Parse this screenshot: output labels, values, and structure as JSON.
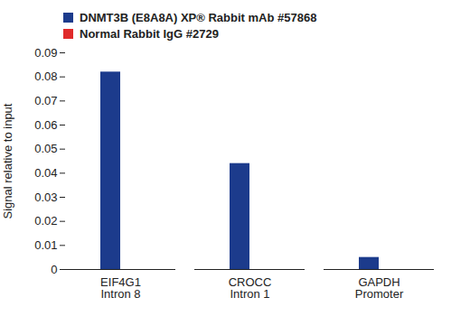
{
  "chart_data": {
    "type": "bar",
    "categories": [
      "EIF4G1\nIntron 8",
      "CROCC\nIntron 1",
      "GAPDH\nPromoter"
    ],
    "series": [
      {
        "name": "DNMT3B (E8A8A) XP® Rabbit mAb #57868",
        "color": "#1c3b8c",
        "values": [
          0.082,
          0.044,
          0.005
        ]
      },
      {
        "name": "Normal Rabbit IgG #2729",
        "color": "#e02a2a",
        "values": [
          0,
          0,
          0
        ]
      }
    ],
    "y_label": "Signal relative to input",
    "ylim": [
      0,
      0.09
    ],
    "yticks": [
      0,
      0.01,
      0.02,
      0.03,
      0.04,
      0.05,
      0.06,
      0.07,
      0.08,
      0.09
    ],
    "legend": "top",
    "grid": false
  }
}
